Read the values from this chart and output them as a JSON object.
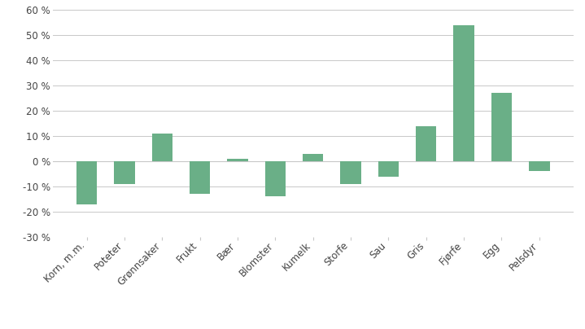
{
  "categories": [
    "Korn, m.m.",
    "Poteter",
    "Grønnsaker",
    "Frukt",
    "Bær",
    "Blomster",
    "Kumelk",
    "Storfe",
    "Sau",
    "Gris",
    "Fjørfe",
    "Egg",
    "Pelsdyr"
  ],
  "values": [
    -17,
    -9,
    11,
    -13,
    1,
    -14,
    3,
    -9,
    -6,
    14,
    54,
    27,
    -4
  ],
  "bar_color": "#6aaf87",
  "ylim": [
    -30,
    60
  ],
  "yticks": [
    -30,
    -20,
    -10,
    0,
    10,
    20,
    30,
    40,
    50,
    60
  ],
  "background_color": "#ffffff",
  "grid_color": "#c8c8c8",
  "text_color": "#444444",
  "bar_width": 0.55,
  "tick_label_fontsize": 8.5,
  "ytick_label_fontsize": 8.5
}
